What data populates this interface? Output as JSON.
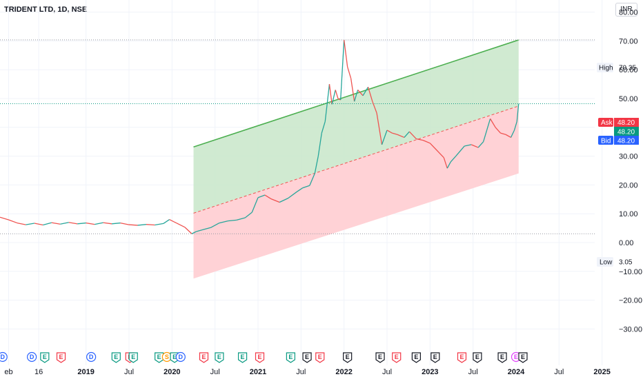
{
  "header": {
    "title": "TRIDENT LTD, 1D, NSE",
    "currency": "INR"
  },
  "colors": {
    "up": "#26a69a",
    "down": "#ef5350",
    "channel_line": "#4caf50",
    "fill_green": "#c8e6c9",
    "fill_red": "#ffcdd2",
    "dashed_mid": "#ef5350",
    "ask": "#f23645",
    "last": "#089981",
    "bid": "#2962ff",
    "dividend": "#2962ff",
    "earnings_pos": "#089981",
    "earnings_neg": "#f23645",
    "earnings_na": "#131722",
    "split": "#ff9800",
    "future": "#e040fb"
  },
  "markers": {
    "high": {
      "label": "High",
      "value": "70.35"
    },
    "low": {
      "label": "Low",
      "value": "3.05"
    },
    "ask": {
      "label": "Ask",
      "value": "48.20"
    },
    "last": {
      "value": "48.20"
    },
    "bid": {
      "label": "Bid",
      "value": "48.20"
    }
  },
  "chart_data": {
    "type": "line",
    "title": "TRIDENT LTD, 1D, NSE",
    "yticks": [
      "80.00",
      "70.00",
      "60.00",
      "50.00",
      "40.00",
      "30.00",
      "20.00",
      "10.00",
      "0.00",
      "−10.00",
      "−20.00",
      "−30.00"
    ],
    "ylim": [
      -30,
      80
    ],
    "xticks": [
      {
        "label": "eb",
        "t": 2018.1,
        "bold": false
      },
      {
        "label": "16",
        "t": 2018.45,
        "bold": false
      },
      {
        "label": "2019",
        "t": 2019.0,
        "bold": true
      },
      {
        "label": "Jul",
        "t": 2019.5,
        "bold": false
      },
      {
        "label": "2020",
        "t": 2020.0,
        "bold": true
      },
      {
        "label": "Jul",
        "t": 2020.5,
        "bold": false
      },
      {
        "label": "2021",
        "t": 2021.0,
        "bold": true
      },
      {
        "label": "Jul",
        "t": 2021.5,
        "bold": false
      },
      {
        "label": "2022",
        "t": 2022.0,
        "bold": true
      },
      {
        "label": "Jul",
        "t": 2022.5,
        "bold": false
      },
      {
        "label": "2023",
        "t": 2023.0,
        "bold": true
      },
      {
        "label": "Jul",
        "t": 2023.5,
        "bold": false
      },
      {
        "label": "2024",
        "t": 2024.0,
        "bold": true
      },
      {
        "label": "Jul",
        "t": 2024.5,
        "bold": false
      },
      {
        "label": "2025",
        "t": 2025.0,
        "bold": true
      }
    ],
    "price_series": [
      [
        2018.0,
        8.8
      ],
      [
        2018.1,
        7.9
      ],
      [
        2018.2,
        6.8
      ],
      [
        2018.3,
        6.2
      ],
      [
        2018.4,
        6.7
      ],
      [
        2018.5,
        6.1
      ],
      [
        2018.6,
        6.9
      ],
      [
        2018.7,
        6.4
      ],
      [
        2018.8,
        7.0
      ],
      [
        2018.9,
        6.5
      ],
      [
        2019.0,
        6.8
      ],
      [
        2019.1,
        6.3
      ],
      [
        2019.2,
        6.9
      ],
      [
        2019.3,
        6.5
      ],
      [
        2019.4,
        6.8
      ],
      [
        2019.5,
        6.2
      ],
      [
        2019.6,
        6.0
      ],
      [
        2019.7,
        6.3
      ],
      [
        2019.8,
        6.1
      ],
      [
        2019.9,
        6.6
      ],
      [
        2019.97,
        8.0
      ],
      [
        2020.05,
        6.8
      ],
      [
        2020.15,
        5.3
      ],
      [
        2020.23,
        3.05
      ],
      [
        2020.28,
        3.8
      ],
      [
        2020.35,
        4.4
      ],
      [
        2020.45,
        5.2
      ],
      [
        2020.55,
        6.8
      ],
      [
        2020.65,
        7.5
      ],
      [
        2020.75,
        7.8
      ],
      [
        2020.85,
        8.6
      ],
      [
        2020.93,
        10.5
      ],
      [
        2021.0,
        15.6
      ],
      [
        2021.08,
        16.5
      ],
      [
        2021.15,
        15.2
      ],
      [
        2021.25,
        14.0
      ],
      [
        2021.35,
        15.4
      ],
      [
        2021.45,
        17.6
      ],
      [
        2021.52,
        19.0
      ],
      [
        2021.6,
        19.8
      ],
      [
        2021.66,
        24.0
      ],
      [
        2021.7,
        30.0
      ],
      [
        2021.74,
        38.0
      ],
      [
        2021.78,
        42.0
      ],
      [
        2021.83,
        55.0
      ],
      [
        2021.86,
        48.0
      ],
      [
        2021.9,
        53.0
      ],
      [
        2021.93,
        50.0
      ],
      [
        2021.96,
        49.5
      ],
      [
        2022.0,
        70.35
      ],
      [
        2022.04,
        61.0
      ],
      [
        2022.08,
        57.0
      ],
      [
        2022.12,
        49.0
      ],
      [
        2022.16,
        53.0
      ],
      [
        2022.22,
        51.0
      ],
      [
        2022.28,
        54.0
      ],
      [
        2022.33,
        49.0
      ],
      [
        2022.38,
        45.0
      ],
      [
        2022.44,
        34.0
      ],
      [
        2022.5,
        39.0
      ],
      [
        2022.56,
        38.0
      ],
      [
        2022.62,
        37.5
      ],
      [
        2022.7,
        36.5
      ],
      [
        2022.76,
        38.5
      ],
      [
        2022.84,
        36.0
      ],
      [
        2022.92,
        35.5
      ],
      [
        2023.0,
        34.5
      ],
      [
        2023.08,
        32.0
      ],
      [
        2023.16,
        29.5
      ],
      [
        2023.2,
        25.8
      ],
      [
        2023.24,
        28.0
      ],
      [
        2023.3,
        30.0
      ],
      [
        2023.4,
        33.5
      ],
      [
        2023.48,
        34.0
      ],
      [
        2023.56,
        33.0
      ],
      [
        2023.62,
        35.0
      ],
      [
        2023.66,
        39.0
      ],
      [
        2023.7,
        43.0
      ],
      [
        2023.76,
        40.0
      ],
      [
        2023.82,
        38.0
      ],
      [
        2023.88,
        37.5
      ],
      [
        2023.94,
        36.5
      ],
      [
        2023.98,
        39.0
      ],
      [
        2024.01,
        42.0
      ],
      [
        2024.03,
        48.2
      ]
    ],
    "channel": {
      "upper": [
        [
          2020.25,
          33.2
        ],
        [
          2024.03,
          70.35
        ]
      ],
      "middle": [
        [
          2020.25,
          10.2
        ],
        [
          2024.03,
          47.4
        ]
      ],
      "lower": [
        [
          2020.25,
          -12.5
        ],
        [
          2024.03,
          24.0
        ]
      ]
    },
    "events": [
      {
        "t": 2018.03,
        "type": "D"
      },
      {
        "t": 2018.37,
        "type": "D"
      },
      {
        "t": 2018.52,
        "type": "E"
      },
      {
        "t": 2018.71,
        "type": "E"
      },
      {
        "t": 2019.06,
        "type": "D"
      },
      {
        "t": 2019.35,
        "type": "E"
      },
      {
        "t": 2019.51,
        "type": "E"
      },
      {
        "t": 2019.55,
        "type": "E"
      },
      {
        "t": 2019.85,
        "type": "E"
      },
      {
        "t": 2019.94,
        "type": "S"
      },
      {
        "t": 2020.03,
        "type": "E"
      },
      {
        "t": 2020.1,
        "type": "D"
      },
      {
        "t": 2020.37,
        "type": "E"
      },
      {
        "t": 2020.55,
        "type": "E"
      },
      {
        "t": 2020.82,
        "type": "E"
      },
      {
        "t": 2021.02,
        "type": "E"
      },
      {
        "t": 2021.38,
        "type": "E"
      },
      {
        "t": 2021.57,
        "type": "E"
      },
      {
        "t": 2021.72,
        "type": "E"
      },
      {
        "t": 2022.04,
        "type": "E"
      },
      {
        "t": 2022.42,
        "type": "E"
      },
      {
        "t": 2022.61,
        "type": "E"
      },
      {
        "t": 2022.84,
        "type": "E"
      },
      {
        "t": 2023.06,
        "type": "E"
      },
      {
        "t": 2023.37,
        "type": "E"
      },
      {
        "t": 2023.55,
        "type": "E"
      },
      {
        "t": 2023.84,
        "type": "E"
      },
      {
        "t": 2024.0,
        "type": "F"
      },
      {
        "t": 2024.08,
        "type": "E"
      }
    ]
  }
}
